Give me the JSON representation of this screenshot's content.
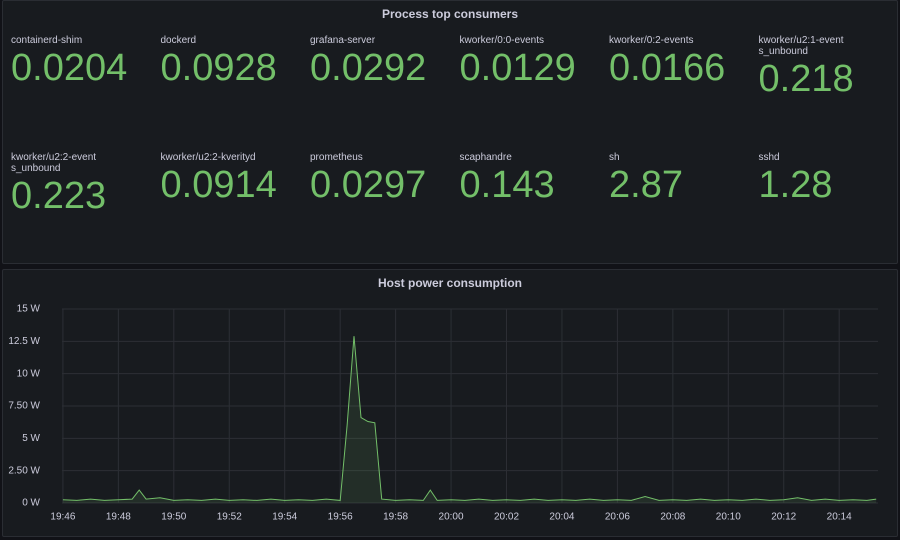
{
  "stat_panel": {
    "title": "Process top consumers",
    "items": [
      {
        "name": "containerd-shim",
        "value": 0.0204
      },
      {
        "name": "dockerd",
        "value": 0.0928
      },
      {
        "name": "grafana-server",
        "value": 0.0292
      },
      {
        "name": "kworker/0:0-events",
        "value": 0.0129
      },
      {
        "name": "kworker/0:2-events",
        "value": 0.0166
      },
      {
        "name": "kworker/u2:1-events_unbound",
        "value": 0.218
      },
      {
        "name": "kworker/u2:2-events_unbound",
        "value": 0.223
      },
      {
        "name": "kworker/u2:2-kverityd",
        "value": 0.0914
      },
      {
        "name": "prometheus",
        "value": 0.0297
      },
      {
        "name": "scaphandre",
        "value": 0.143
      },
      {
        "name": "sh",
        "value": 2.87
      },
      {
        "name": "sshd",
        "value": 1.28
      }
    ]
  },
  "chart_data": {
    "type": "line",
    "title": "Host power consumption",
    "color": "#73bf69",
    "grid": true,
    "x": [
      "19:46:00",
      "19:46:30",
      "19:47:00",
      "19:47:30",
      "19:48:00",
      "19:48:30",
      "19:48:45",
      "19:49:00",
      "19:49:30",
      "19:50:00",
      "19:50:30",
      "19:51:00",
      "19:51:30",
      "19:52:00",
      "19:52:30",
      "19:53:00",
      "19:53:30",
      "19:54:00",
      "19:54:30",
      "19:55:00",
      "19:55:30",
      "19:56:00",
      "19:56:15",
      "19:56:30",
      "19:56:45",
      "19:57:00",
      "19:57:15",
      "19:57:30",
      "19:58:00",
      "19:58:30",
      "19:59:00",
      "19:59:15",
      "19:59:30",
      "20:00:00",
      "20:00:30",
      "20:01:00",
      "20:01:30",
      "20:02:00",
      "20:02:30",
      "20:03:00",
      "20:03:30",
      "20:04:00",
      "20:04:30",
      "20:05:00",
      "20:05:30",
      "20:06:00",
      "20:06:30",
      "20:07:00",
      "20:07:30",
      "20:08:00",
      "20:08:30",
      "20:09:00",
      "20:09:30",
      "20:10:00",
      "20:10:30",
      "20:11:00",
      "20:11:30",
      "20:12:00",
      "20:12:30",
      "20:13:00",
      "20:13:30",
      "20:14:00",
      "20:14:30",
      "20:15:00",
      "20:15:20"
    ],
    "values": [
      0.25,
      0.2,
      0.3,
      0.2,
      0.25,
      0.3,
      1.0,
      0.3,
      0.4,
      0.2,
      0.25,
      0.2,
      0.3,
      0.2,
      0.25,
      0.2,
      0.3,
      0.2,
      0.25,
      0.2,
      0.3,
      0.2,
      6.0,
      12.9,
      6.6,
      6.3,
      6.2,
      0.3,
      0.2,
      0.25,
      0.2,
      1.0,
      0.2,
      0.25,
      0.2,
      0.3,
      0.2,
      0.25,
      0.2,
      0.3,
      0.2,
      0.25,
      0.2,
      0.3,
      0.2,
      0.25,
      0.2,
      0.5,
      0.2,
      0.25,
      0.2,
      0.3,
      0.2,
      0.25,
      0.2,
      0.3,
      0.2,
      0.25,
      0.4,
      0.2,
      0.3,
      0.2,
      0.25,
      0.2,
      0.3
    ],
    "xlim": [
      "19:45:58",
      "20:15:24"
    ],
    "xticks": [
      "19:46",
      "19:48",
      "19:50",
      "19:52",
      "19:54",
      "19:56",
      "19:58",
      "20:00",
      "20:02",
      "20:04",
      "20:06",
      "20:08",
      "20:10",
      "20:12",
      "20:14"
    ],
    "ylim": [
      0,
      15
    ],
    "yticks": [
      {
        "value": 0,
        "label": "0 W"
      },
      {
        "value": 2.5,
        "label": "2.50 W"
      },
      {
        "value": 5,
        "label": "5 W"
      },
      {
        "value": 7.5,
        "label": "7.50 W"
      },
      {
        "value": 10,
        "label": "10 W"
      },
      {
        "value": 12.5,
        "label": "12.5 W"
      },
      {
        "value": 15,
        "label": "15 W"
      }
    ]
  }
}
